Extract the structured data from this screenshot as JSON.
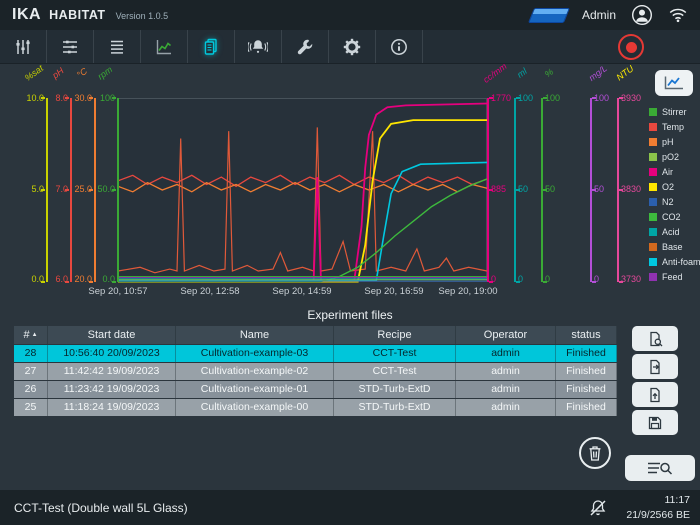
{
  "header": {
    "brand": "IKA",
    "app_name": "HABITAT",
    "version": "Version 1.0.5",
    "username": "Admin"
  },
  "toolbar": {
    "icons": [
      "process-control-icon",
      "setpoints-icon",
      "experiment-list-icon",
      "trends-icon",
      "reports-icon",
      "alarms-icon",
      "service-icon",
      "settings-icon",
      "info-icon",
      "record-stop-button"
    ],
    "active": "reports-icon"
  },
  "colors": {
    "accent": "#00c6da",
    "record": "#e53935",
    "selected_row": "#00c6da"
  },
  "chart": {
    "export_icon": "chart-export-icon",
    "left_axes": [
      {
        "label": "%sat",
        "color": "#c9d200",
        "ticks": [
          "10.0",
          "5.0",
          "0.0"
        ]
      },
      {
        "label": "pH",
        "color": "#e8483f",
        "ticks": [
          "8.0",
          "7.0",
          "6.0"
        ]
      },
      {
        "label": "°C",
        "color": "#f07d32",
        "ticks": [
          "30.0",
          "25.0",
          "20.0"
        ]
      },
      {
        "label": "rpm",
        "color": "#3aaa35",
        "ticks": [
          "100",
          "50.0",
          "0.0"
        ]
      }
    ],
    "right_axes": [
      {
        "label": "cc/mm",
        "color": "#e6007e",
        "ticks": [
          "1770",
          "885",
          "0"
        ]
      },
      {
        "label": "ml",
        "color": "#00a5a5",
        "ticks": [
          "100",
          "50",
          "0"
        ]
      },
      {
        "label": "%",
        "color": "#3aaa35",
        "ticks": [
          "100",
          "50",
          "0"
        ]
      },
      {
        "label": "mg/L",
        "color": "#b44fd8",
        "ticks": [
          "100",
          "50",
          "0"
        ]
      },
      {
        "label": "NTU",
        "color": "#e6489b",
        "label_color": "#ffed00",
        "ticks": [
          "3930",
          "3830",
          "3730"
        ]
      }
    ],
    "x_ticks": [
      "Sep 20, 10:57",
      "Sep 20, 12:58",
      "Sep 20, 14:59",
      "Sep 20, 16:59",
      "Sep 20, 19:00"
    ],
    "legend": [
      {
        "label": "Stirrer",
        "color": "#3aaa35"
      },
      {
        "label": "Temp",
        "color": "#e8483f"
      },
      {
        "label": "pH",
        "color": "#f07d32"
      },
      {
        "label": "pO2",
        "color": "#8bc34a"
      },
      {
        "label": "Air",
        "color": "#e6007e"
      },
      {
        "label": "O2",
        "color": "#ffe600"
      },
      {
        "label": "N2",
        "color": "#2b5fad"
      },
      {
        "label": "CO2",
        "color": "#3db93d"
      },
      {
        "label": "Acid",
        "color": "#00a5a5"
      },
      {
        "label": "Base",
        "color": "#d2691e"
      },
      {
        "label": "Anti-foam",
        "color": "#00c8e0"
      },
      {
        "label": "Feed",
        "color": "#9032b0"
      }
    ]
  },
  "chart_data": {
    "type": "line",
    "x_range": [
      "Sep 20, 10:57",
      "Sep 20, 19:00"
    ],
    "note": "points are [x_percent_of_timespan, y_percent_of_axis_height]",
    "series": [
      {
        "name": "Temp",
        "color": "#e8483f",
        "width": 1.3,
        "points": [
          [
            0,
            55
          ],
          [
            4,
            58
          ],
          [
            8,
            53
          ],
          [
            12,
            57
          ],
          [
            16,
            54
          ],
          [
            20,
            58
          ],
          [
            24,
            53
          ],
          [
            28,
            57
          ],
          [
            32,
            52
          ],
          [
            36,
            57
          ],
          [
            40,
            54
          ],
          [
            44,
            58
          ],
          [
            48,
            53
          ],
          [
            52,
            57
          ],
          [
            56,
            54
          ],
          [
            60,
            58
          ],
          [
            64,
            53
          ],
          [
            68,
            57
          ],
          [
            72,
            54
          ],
          [
            76,
            58
          ],
          [
            80,
            53
          ],
          [
            84,
            57
          ],
          [
            88,
            54
          ],
          [
            92,
            57
          ],
          [
            96,
            53
          ],
          [
            100,
            56
          ]
        ]
      },
      {
        "name": "pH",
        "color": "#f07d32",
        "width": 1.3,
        "points": [
          [
            0,
            52
          ],
          [
            4,
            49
          ],
          [
            8,
            54
          ],
          [
            12,
            50
          ],
          [
            16,
            53
          ],
          [
            20,
            49
          ],
          [
            24,
            54
          ],
          [
            28,
            50
          ],
          [
            32,
            53
          ],
          [
            36,
            49
          ],
          [
            40,
            53
          ],
          [
            44,
            50
          ],
          [
            48,
            54
          ],
          [
            52,
            50
          ],
          [
            56,
            53
          ],
          [
            60,
            49
          ],
          [
            64,
            53
          ],
          [
            68,
            50
          ],
          [
            72,
            53
          ],
          [
            76,
            49
          ],
          [
            80,
            53
          ],
          [
            84,
            50
          ],
          [
            88,
            53
          ],
          [
            92,
            49
          ],
          [
            96,
            53
          ],
          [
            100,
            51
          ]
        ]
      },
      {
        "name": "Base",
        "color": "#e05939",
        "width": 1.2,
        "points": [
          [
            0,
            6
          ],
          [
            6,
            8
          ],
          [
            10,
            5
          ],
          [
            14,
            7
          ],
          [
            16,
            6
          ],
          [
            17,
            78
          ],
          [
            18,
            6
          ],
          [
            22,
            9
          ],
          [
            26,
            6
          ],
          [
            29,
            7
          ],
          [
            30,
            82
          ],
          [
            31,
            6
          ],
          [
            35,
            9
          ],
          [
            38,
            6
          ],
          [
            42,
            7
          ],
          [
            44,
            16
          ],
          [
            46,
            6
          ],
          [
            50,
            8
          ],
          [
            53,
            6
          ],
          [
            54,
            84
          ],
          [
            55,
            6
          ],
          [
            58,
            7
          ],
          [
            61,
            22
          ],
          [
            63,
            6
          ],
          [
            67,
            7
          ],
          [
            69,
            82
          ],
          [
            70,
            6
          ],
          [
            74,
            8
          ],
          [
            78,
            6
          ],
          [
            81,
            18
          ],
          [
            83,
            6
          ],
          [
            87,
            8
          ],
          [
            89,
            13
          ],
          [
            91,
            6
          ],
          [
            95,
            8
          ],
          [
            100,
            6
          ]
        ]
      },
      {
        "name": "Air",
        "color": "#e6007e",
        "width": 1.8,
        "points": [
          [
            0,
            0.5
          ],
          [
            53,
            0.5
          ],
          [
            54,
            57
          ],
          [
            55,
            0.5
          ],
          [
            64,
            0.5
          ],
          [
            66,
            30
          ],
          [
            67,
            62
          ],
          [
            68,
            80
          ],
          [
            70,
            91
          ],
          [
            73,
            95
          ],
          [
            78,
            96
          ],
          [
            100,
            97
          ]
        ]
      },
      {
        "name": "O2",
        "color": "#ffe600",
        "width": 1.8,
        "points": [
          [
            0,
            0.2
          ],
          [
            65,
            0.2
          ],
          [
            67,
            20
          ],
          [
            69,
            55
          ],
          [
            71,
            78
          ],
          [
            74,
            86
          ],
          [
            80,
            88
          ],
          [
            100,
            88
          ]
        ]
      },
      {
        "name": "Anti-foam",
        "color": "#00c8e0",
        "width": 1.6,
        "points": [
          [
            0,
            0.8
          ],
          [
            70,
            0.8
          ],
          [
            72,
            25
          ],
          [
            74,
            48
          ],
          [
            77,
            60
          ],
          [
            82,
            64
          ],
          [
            100,
            65
          ]
        ]
      },
      {
        "name": "CO2",
        "color": "#3db93d",
        "width": 1.4,
        "points": [
          [
            0,
            0.3
          ],
          [
            55,
            0.3
          ],
          [
            60,
            3
          ],
          [
            65,
            8
          ],
          [
            70,
            16
          ],
          [
            75,
            25
          ],
          [
            80,
            33
          ],
          [
            85,
            41
          ],
          [
            90,
            47
          ],
          [
            95,
            52
          ],
          [
            100,
            56
          ]
        ]
      },
      {
        "name": "pO2",
        "color": "#8bc34a",
        "width": 1,
        "points": [
          [
            0,
            1.2
          ],
          [
            100,
            1.2
          ]
        ]
      },
      {
        "name": "N2",
        "color": "#2b5fad",
        "width": 1,
        "points": [
          [
            0,
            0.5
          ],
          [
            100,
            0.5
          ]
        ]
      },
      {
        "name": "Acid",
        "color": "#00a5a5",
        "width": 1,
        "points": [
          [
            0,
            1.8
          ],
          [
            100,
            1.8
          ]
        ]
      },
      {
        "name": "Feed",
        "color": "#9032b0",
        "width": 1,
        "points": [
          [
            0,
            2.4
          ],
          [
            100,
            2.4
          ]
        ]
      },
      {
        "name": "Stirrer",
        "color": "#3aaa35",
        "width": 1,
        "points": [
          [
            0,
            3
          ],
          [
            100,
            3
          ]
        ]
      }
    ]
  },
  "experiment_files": {
    "title": "Experiment files",
    "columns": [
      "#",
      "Start date",
      "Name",
      "Recipe",
      "Operator",
      "status"
    ],
    "sort_column": "#",
    "rows": [
      {
        "id": "28",
        "start": "10:56:40 20/09/2023",
        "name": "Cultivation-example-03",
        "recipe": "CCT-Test",
        "operator": "admin",
        "status": "Finished",
        "selected": true
      },
      {
        "id": "27",
        "start": "11:42:42 19/09/2023",
        "name": "Cultivation-example-02",
        "recipe": "CCT-Test",
        "operator": "admin",
        "status": "Finished",
        "selected": false
      },
      {
        "id": "26",
        "start": "11:23:42 19/09/2023",
        "name": "Cultivation-example-01",
        "recipe": "STD-Turb-ExtD",
        "operator": "admin",
        "status": "Finished",
        "selected": false
      },
      {
        "id": "25",
        "start": "11:18:24 19/09/2023",
        "name": "Cultivation-example-00",
        "recipe": "STD-Turb-ExtD",
        "operator": "admin",
        "status": "Finished",
        "selected": false
      }
    ],
    "action_icons": [
      "file-report-icon",
      "file-export-icon",
      "file-import-icon",
      "save-icon",
      "trash-icon",
      "search-table-icon"
    ]
  },
  "statusbar": {
    "vessel": "CCT-Test (Double wall 5L Glass)",
    "time": "11:17",
    "date": "21/9/2566 BE",
    "muted_icon": "bell-muted-icon"
  }
}
